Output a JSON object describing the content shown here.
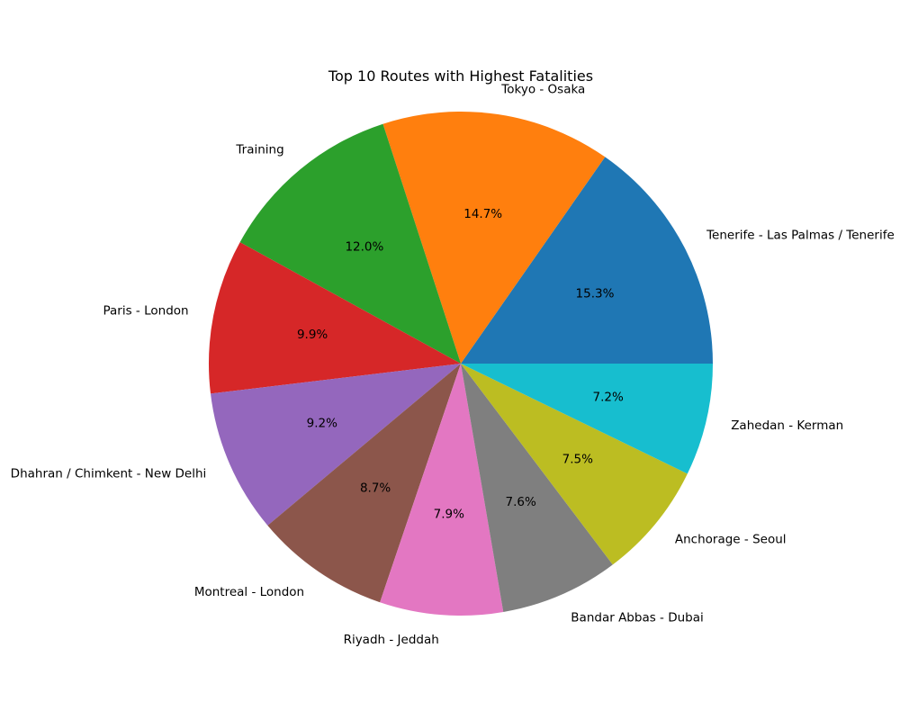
{
  "chart_data": {
    "type": "pie",
    "title": "Top 10 Routes with Highest Fatalities",
    "slices": [
      {
        "label": "Tenerife - Las Palmas / Tenerife",
        "percent": 15.3,
        "color": "#1f77b4"
      },
      {
        "label": "Tokyo - Osaka",
        "percent": 14.7,
        "color": "#ff7f0e"
      },
      {
        "label": "Training",
        "percent": 12.0,
        "color": "#2ca02c"
      },
      {
        "label": "Paris - London",
        "percent": 9.9,
        "color": "#d62728"
      },
      {
        "label": "Dhahran / Chimkent - New Delhi",
        "percent": 9.2,
        "color": "#9467bd"
      },
      {
        "label": "Montreal - London",
        "percent": 8.7,
        "color": "#8c564b"
      },
      {
        "label": "Riyadh - Jeddah",
        "percent": 7.9,
        "color": "#e377c2"
      },
      {
        "label": "Bandar Abbas - Dubai",
        "percent": 7.6,
        "color": "#7f7f7f"
      },
      {
        "label": "Anchorage - Seoul",
        "percent": 7.5,
        "color": "#bcbd22"
      },
      {
        "label": "Zahedan - Kerman",
        "percent": 7.2,
        "color": "#17becf"
      }
    ],
    "start_angle_deg": 0,
    "direction": "counterclockwise",
    "legend": "none"
  }
}
